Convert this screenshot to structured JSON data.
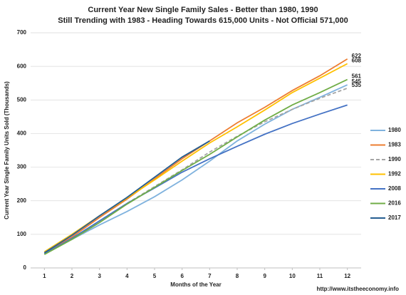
{
  "chart_data": {
    "type": "line",
    "title": "Current Year New Single Family Sales - Better than 1980, 1990",
    "subtitle": "Still Trending with 1983 - Heading Towards 615,000 Units - Not Official 571,000",
    "x_label": "Months of the Year",
    "y_label": "Current Year Single Family Units Sold (Thousands)",
    "source": "http://www.itstheeconomy.info",
    "x": [
      1,
      2,
      3,
      4,
      5,
      6,
      7,
      8,
      9,
      10,
      11,
      12
    ],
    "xlim": [
      0.5,
      12.5
    ],
    "xticks": [
      1,
      2,
      3,
      4,
      5,
      6,
      7,
      8,
      9,
      10,
      11,
      12
    ],
    "ylim": [
      0,
      700
    ],
    "yticks": [
      0,
      100,
      200,
      300,
      400,
      500,
      600,
      700
    ],
    "grid": true,
    "legend": "right",
    "series": [
      {
        "name": "1980",
        "color": "#7fb2de",
        "dashed": false,
        "end_label": true,
        "values": [
          45,
          85,
          128,
          168,
          212,
          262,
          318,
          378,
          428,
          472,
          508,
          545
        ]
      },
      {
        "name": "1983",
        "color": "#ed7d31",
        "dashed": false,
        "end_label": true,
        "values": [
          45,
          92,
          150,
          205,
          265,
          325,
          378,
          432,
          478,
          528,
          572,
          622
        ]
      },
      {
        "name": "1990",
        "color": "#a5a5a5",
        "dashed": true,
        "end_label": true,
        "values": [
          42,
          88,
          140,
          192,
          242,
          292,
          345,
          392,
          435,
          472,
          505,
          535
        ]
      },
      {
        "name": "1992",
        "color": "#ffc000",
        "dashed": false,
        "end_label": true,
        "values": [
          48,
          100,
          155,
          208,
          262,
          318,
          372,
          420,
          470,
          522,
          565,
          608
        ]
      },
      {
        "name": "2008",
        "color": "#4472c4",
        "dashed": false,
        "end_label": false,
        "values": [
          42,
          88,
          140,
          192,
          238,
          285,
          325,
          362,
          398,
          430,
          458,
          485
        ]
      },
      {
        "name": "2016",
        "color": "#70ad47",
        "dashed": false,
        "end_label": true,
        "values": [
          40,
          85,
          135,
          190,
          240,
          290,
          338,
          390,
          440,
          485,
          522,
          561
        ]
      },
      {
        "name": "2017",
        "color": "#255e91",
        "dashed": false,
        "end_label": false,
        "values": [
          45,
          97,
          155,
          210,
          270,
          330,
          378,
          null,
          null,
          null,
          null,
          null
        ]
      }
    ]
  }
}
